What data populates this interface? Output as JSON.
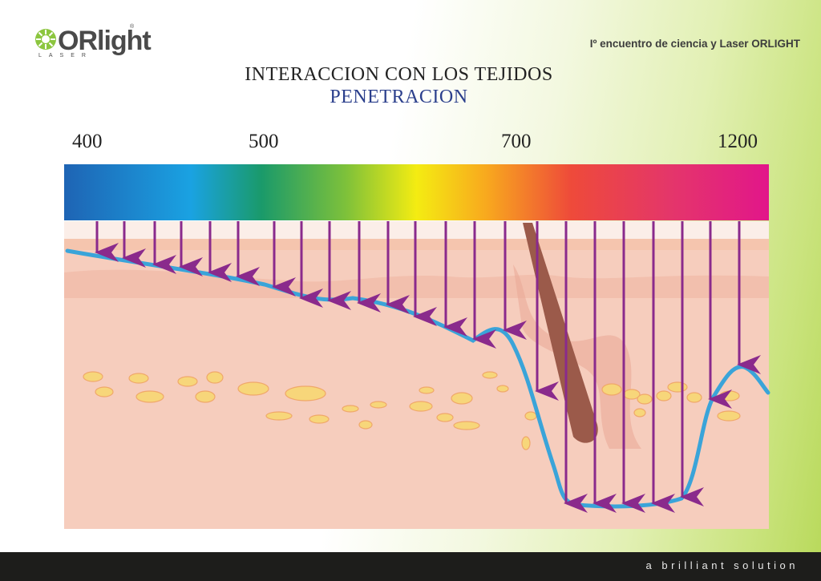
{
  "logo": {
    "word": "ORlight",
    "sub": "LASER",
    "reg": "®"
  },
  "header": {
    "event": "Iº encuentro de ciencia y Laser ORLIGHT"
  },
  "title": {
    "line1": "INTERACCION CON LOS TEJIDOS",
    "line2": "PENETRACION"
  },
  "wavelength_labels": [
    "400",
    "500",
    "700",
    "1200"
  ],
  "footer": {
    "slogan": "a brilliant solution"
  },
  "colors": {
    "arrow": "#8a2a8c",
    "penetration_line": "#3aa4d9",
    "skin": "#f6cdbd",
    "fat": "#f7d67a"
  },
  "icons": [
    "flower-logo-icon"
  ]
}
